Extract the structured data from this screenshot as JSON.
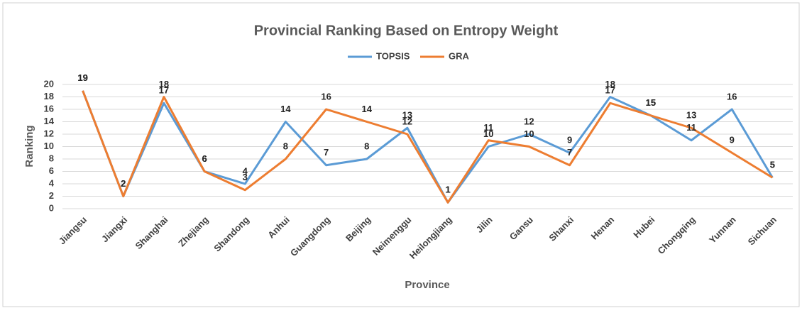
{
  "chart_data": {
    "type": "line",
    "title": "Provincial Ranking Based on Entropy Weight",
    "x_label": "Province",
    "y_label": "Ranking",
    "categories": [
      "Jiangsu",
      "Jiangxi",
      "Shanghai",
      "Zhejiang",
      "Shandong",
      "Anhui",
      "Guangdong",
      "Beijing",
      "Neimenggu",
      "Heilongjiang",
      "Jilin",
      "Gansu",
      "Shanxi",
      "Henan",
      "Hubei",
      "Chongqing",
      "Yunnan",
      "Sichuan"
    ],
    "series": [
      {
        "name": "TOPSIS",
        "color": "#5b9bd5",
        "values": [
          19,
          2,
          17,
          6,
          4,
          14,
          7,
          8,
          13,
          1,
          10,
          12,
          9,
          18,
          15,
          11,
          16,
          5
        ]
      },
      {
        "name": "GRA",
        "color": "#ed7d31",
        "values": [
          19,
          2,
          18,
          6,
          3,
          8,
          16,
          14,
          12,
          1,
          11,
          10,
          7,
          17,
          15,
          13,
          9,
          5
        ]
      }
    ],
    "ylim": [
      0,
      20
    ],
    "yticks": [
      0,
      2,
      4,
      6,
      8,
      10,
      12,
      14,
      16,
      18,
      20
    ],
    "grid": true,
    "legend": "top"
  }
}
